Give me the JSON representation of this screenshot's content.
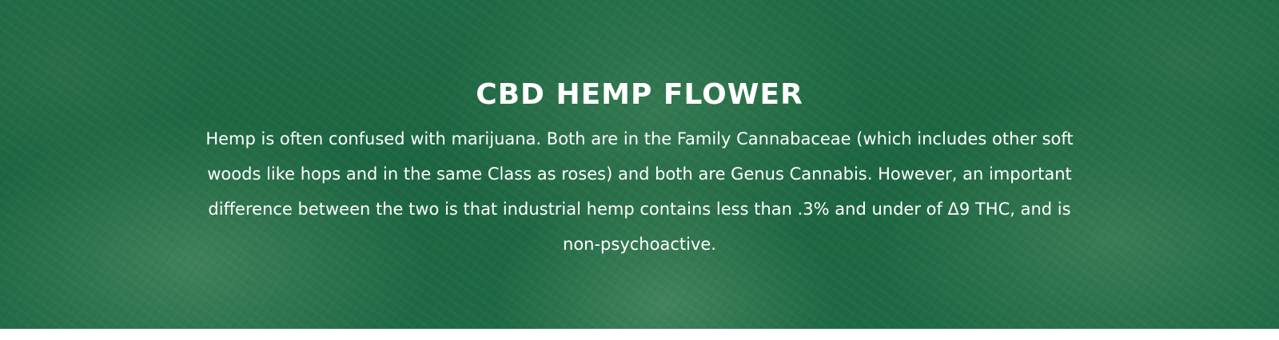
{
  "hero": {
    "title": "CBD HEMP FLOWER",
    "description": "Hemp is often confused with marijuana. Both are in the Family Cannabaceae (which includes other soft woods like hops and in the same Class as roses) and both are Genus Cannabis. However, an important difference between the two is that industrial hemp contains less than .3% and under of Δ9 THC, and is non-psychoactive.",
    "background_color": "#1f6a44",
    "text_color": "#ffffff"
  }
}
